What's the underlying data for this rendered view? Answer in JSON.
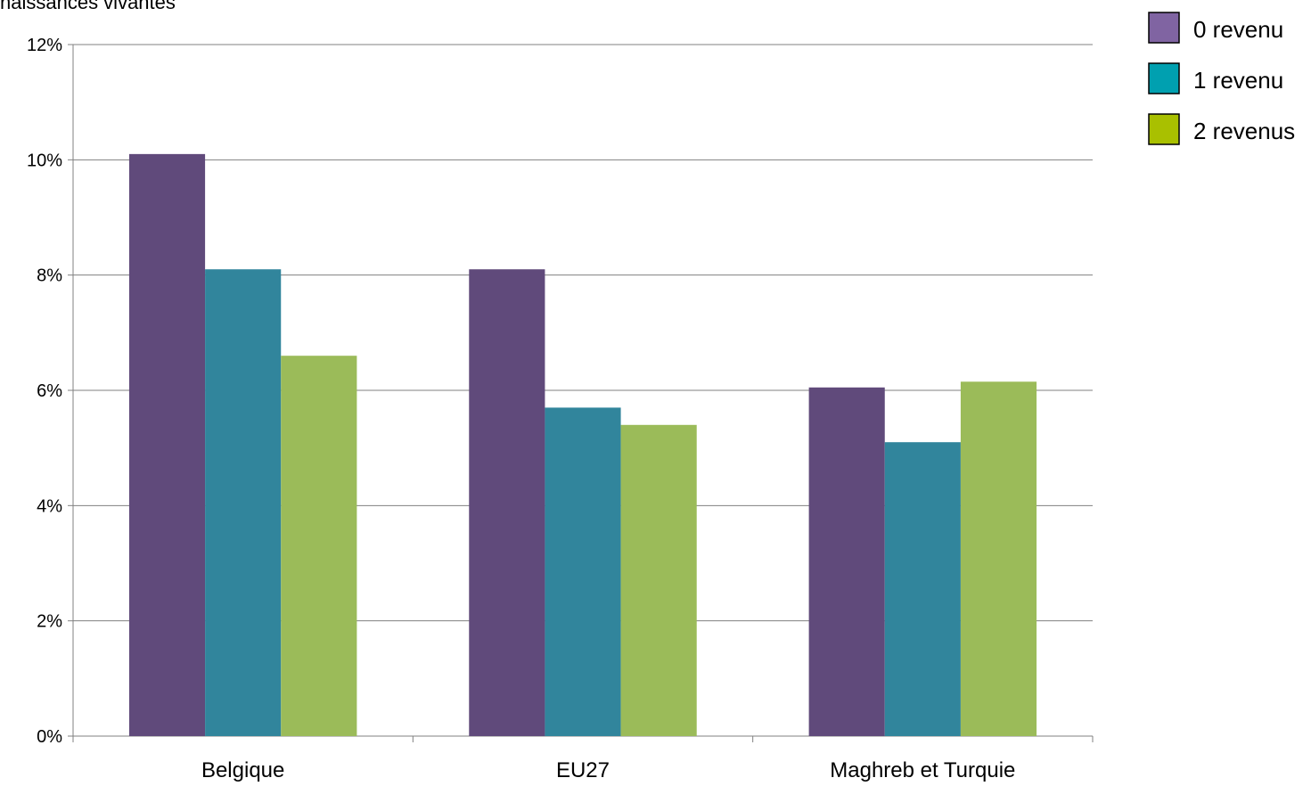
{
  "chart_data": {
    "type": "bar",
    "ylabel": "naissances vivantes",
    "categories": [
      "Belgique",
      "EU27",
      "Maghreb et Turquie"
    ],
    "series": [
      {
        "name": "0 revenu",
        "values": [
          10.1,
          8.1,
          6.05
        ],
        "color": "#604a7b",
        "legend_color": "#8064a2"
      },
      {
        "name": "1 revenu",
        "values": [
          8.1,
          5.7,
          5.1
        ],
        "color": "#31859c",
        "legend_color": "#00a0b0"
      },
      {
        "name": "2 revenus",
        "values": [
          6.6,
          5.4,
          6.15
        ],
        "color": "#9bbb59",
        "legend_color": "#a9c000"
      }
    ],
    "yticks": [
      "0%",
      "2%",
      "4%",
      "6%",
      "8%",
      "10%",
      "12%"
    ],
    "ylim": [
      0,
      12
    ],
    "grid": true,
    "legend_position": "top-right",
    "colors": {
      "grid": "#808080",
      "axis": "#808080",
      "legend_border": "#000000"
    }
  }
}
